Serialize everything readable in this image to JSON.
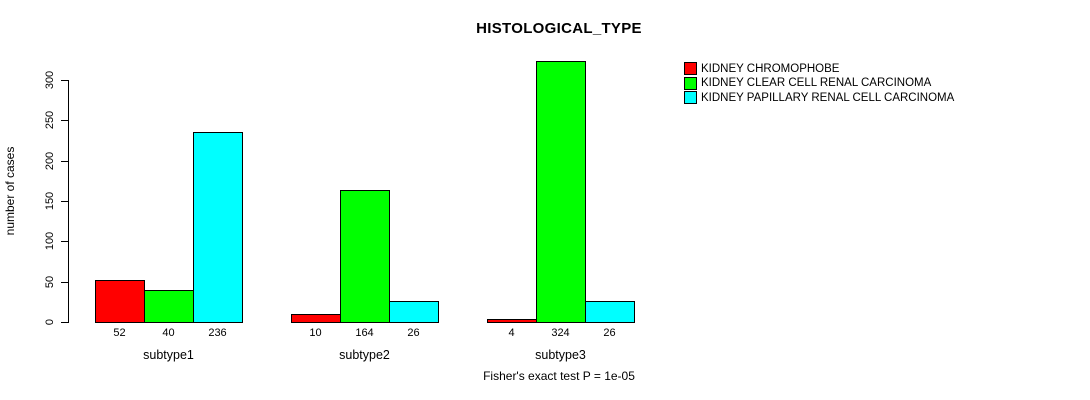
{
  "chart_data": {
    "type": "bar",
    "title": "HISTOLOGICAL_TYPE",
    "xlabel": "",
    "ylabel": "number of cases",
    "ylim": [
      0,
      300
    ],
    "yticks": [
      0,
      50,
      100,
      150,
      200,
      250,
      300
    ],
    "grid": false,
    "legend_position": "top-right",
    "categories": [
      "subtype1",
      "subtype2",
      "subtype3"
    ],
    "series": [
      {
        "name": "KIDNEY CHROMOPHOBE",
        "color": "#FF0000",
        "values": [
          52,
          10,
          4
        ]
      },
      {
        "name": "KIDNEY CLEAR CELL RENAL CARCINOMA",
        "color": "#00FF00",
        "values": [
          40,
          164,
          324
        ]
      },
      {
        "name": "KIDNEY PAPILLARY RENAL CELL CARCINOMA",
        "color": "#00FFFF",
        "values": [
          236,
          26,
          26
        ]
      }
    ],
    "bar_value_labels": [
      [
        52,
        10,
        4
      ],
      [
        40,
        164,
        324
      ],
      [
        236,
        26,
        26
      ]
    ],
    "annotation": "Fisher's exact test P = 1e-05"
  }
}
